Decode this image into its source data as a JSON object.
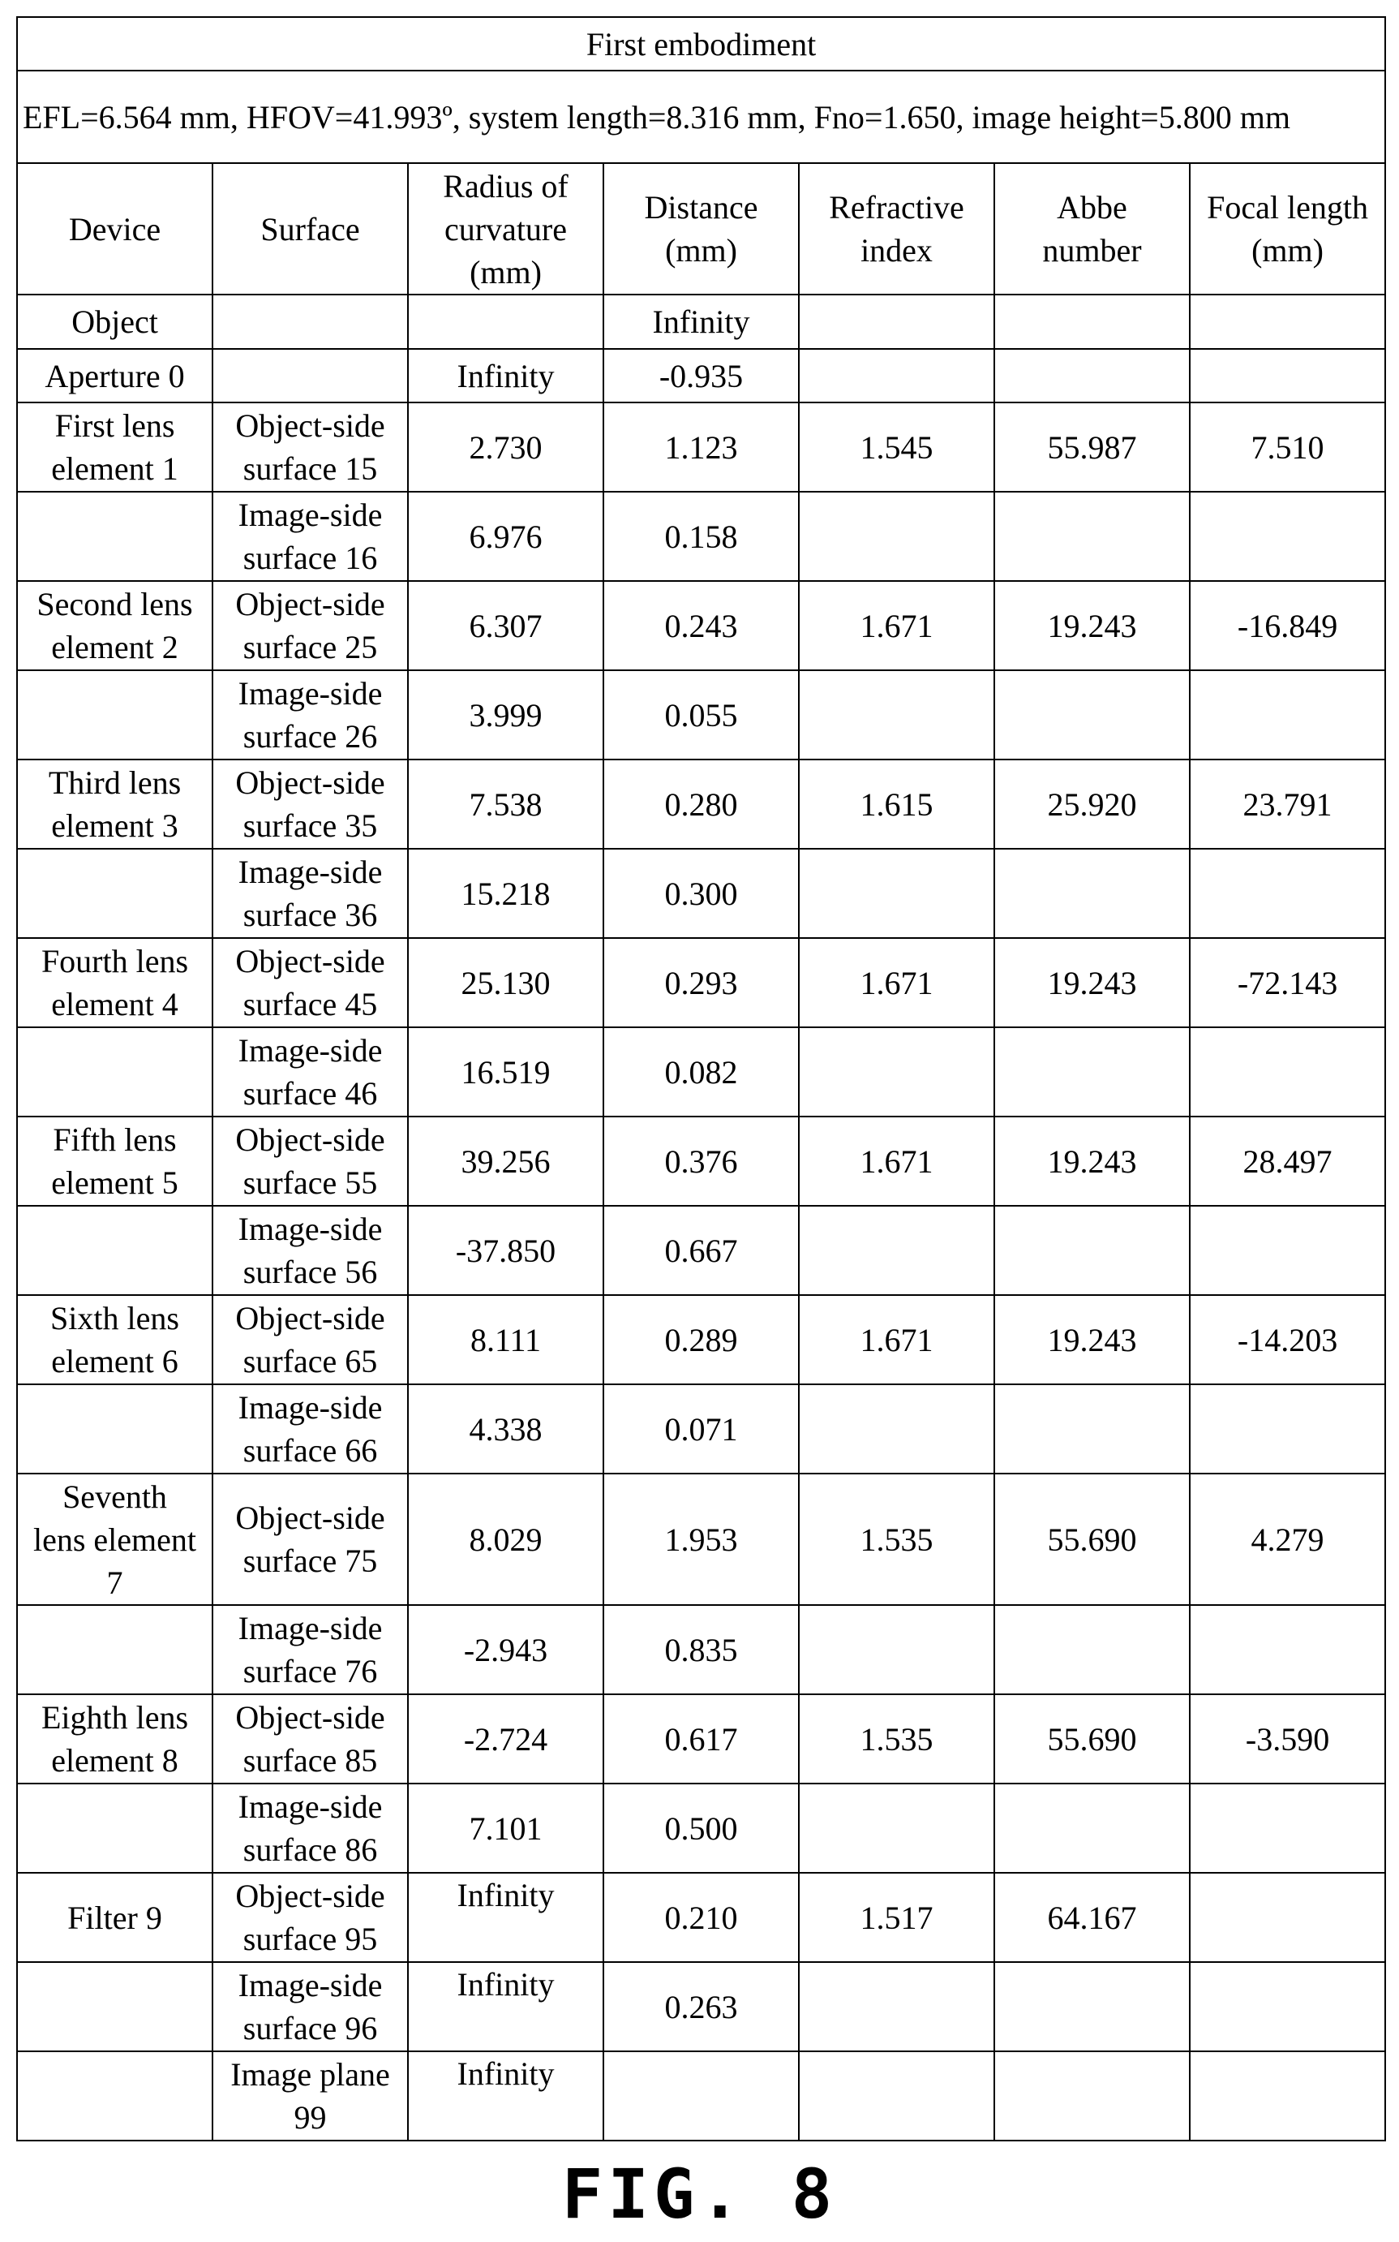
{
  "table": {
    "title": "First embodiment",
    "params": "EFL=6.564 mm, HFOV=41.993º, system length=8.316 mm, Fno=1.650, image height=5.800 mm",
    "columns": [
      "Device",
      "Surface",
      "Radius of\ncurvature\n(mm)",
      "Distance\n(mm)",
      "Refractive\nindex",
      "Abbe\nnumber",
      "Focal length\n(mm)"
    ],
    "rows": [
      {
        "device": "Object",
        "surface": "",
        "radius": "",
        "distance": "Infinity",
        "index": "",
        "abbe": "",
        "focal": ""
      },
      {
        "device": "Aperture 0",
        "surface": "",
        "radius": "Infinity",
        "distance": "-0.935",
        "index": "",
        "abbe": "",
        "focal": ""
      },
      {
        "device": "First lens\nelement 1",
        "surface": "Object-side\nsurface 15",
        "radius": "2.730",
        "distance": "1.123",
        "index": "1.545",
        "abbe": "55.987",
        "focal": "7.510"
      },
      {
        "device": "",
        "surface": "Image-side\nsurface 16",
        "radius": "6.976",
        "distance": "0.158",
        "index": "",
        "abbe": "",
        "focal": ""
      },
      {
        "device": "Second lens\nelement 2",
        "surface": "Object-side\nsurface 25",
        "radius": "6.307",
        "distance": "0.243",
        "index": "1.671",
        "abbe": "19.243",
        "focal": "-16.849"
      },
      {
        "device": "",
        "surface": "Image-side\nsurface 26",
        "radius": "3.999",
        "distance": "0.055",
        "index": "",
        "abbe": "",
        "focal": ""
      },
      {
        "device": "Third lens\nelement 3",
        "surface": "Object-side\nsurface 35",
        "radius": "7.538",
        "distance": "0.280",
        "index": "1.615",
        "abbe": "25.920",
        "focal": "23.791"
      },
      {
        "device": "",
        "surface": "Image-side\nsurface 36",
        "radius": "15.218",
        "distance": "0.300",
        "index": "",
        "abbe": "",
        "focal": ""
      },
      {
        "device": "Fourth lens\nelement 4",
        "surface": "Object-side\nsurface 45",
        "radius": "25.130",
        "distance": "0.293",
        "index": "1.671",
        "abbe": "19.243",
        "focal": "-72.143"
      },
      {
        "device": "",
        "surface": "Image-side\nsurface 46",
        "radius": "16.519",
        "distance": "0.082",
        "index": "",
        "abbe": "",
        "focal": ""
      },
      {
        "device": "Fifth lens\nelement 5",
        "surface": "Object-side\nsurface 55",
        "radius": "39.256",
        "distance": "0.376",
        "index": "1.671",
        "abbe": "19.243",
        "focal": "28.497"
      },
      {
        "device": "",
        "surface": "Image-side\nsurface 56",
        "radius": "-37.850",
        "distance": "0.667",
        "index": "",
        "abbe": "",
        "focal": ""
      },
      {
        "device": "Sixth lens\nelement 6",
        "surface": "Object-side\nsurface 65",
        "radius": "8.111",
        "distance": "0.289",
        "index": "1.671",
        "abbe": "19.243",
        "focal": "-14.203"
      },
      {
        "device": "",
        "surface": "Image-side\nsurface 66",
        "radius": "4.338",
        "distance": "0.071",
        "index": "",
        "abbe": "",
        "focal": ""
      },
      {
        "device": "Seventh\nlens element\n7",
        "surface": "Object-side\nsurface 75",
        "radius": "8.029",
        "distance": "1.953",
        "index": "1.535",
        "abbe": "55.690",
        "focal": "4.279"
      },
      {
        "device": "",
        "surface": "Image-side\nsurface 76",
        "radius": "-2.943",
        "distance": "0.835",
        "index": "",
        "abbe": "",
        "focal": ""
      },
      {
        "device": "Eighth lens\nelement 8",
        "surface": "Object-side\nsurface 85",
        "radius": "-2.724",
        "distance": "0.617",
        "index": "1.535",
        "abbe": "55.690",
        "focal": "-3.590"
      },
      {
        "device": "",
        "surface": "Image-side\nsurface 86",
        "radius": "7.101",
        "distance": "0.500",
        "index": "",
        "abbe": "",
        "focal": ""
      },
      {
        "device": "Filter 9",
        "surface": "Object-side\nsurface 95",
        "radius": "Infinity",
        "distance": "0.210",
        "index": "1.517",
        "abbe": "64.167",
        "focal": ""
      },
      {
        "device": "",
        "surface": "Image-side\nsurface 96",
        "radius": "Infinity",
        "distance": "0.263",
        "index": "",
        "abbe": "",
        "focal": ""
      },
      {
        "device": "",
        "surface": "Image plane\n99",
        "radius": "Infinity",
        "distance": "",
        "index": "",
        "abbe": "",
        "focal": ""
      }
    ]
  },
  "figure_label": "FIG. 8"
}
